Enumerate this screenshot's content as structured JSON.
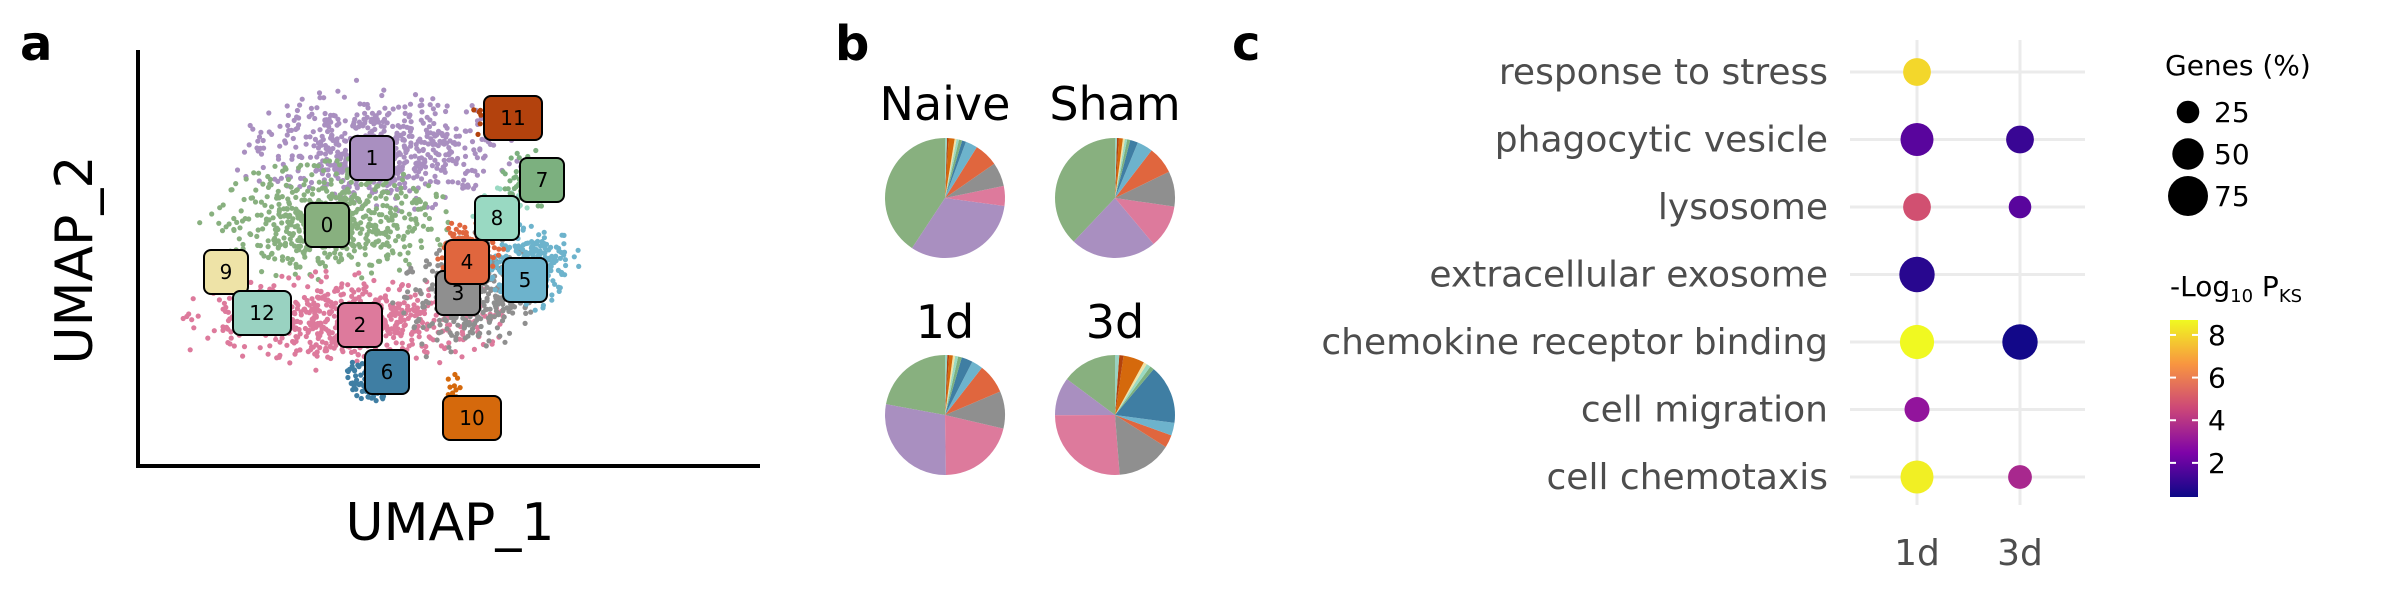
{
  "panels": {
    "a": "a",
    "b": "b",
    "c": "c"
  },
  "umap": {
    "xlabel": "UMAP_1",
    "ylabel": "UMAP_2",
    "clusters": [
      {
        "id": "0",
        "color": "#88b07f"
      },
      {
        "id": "1",
        "color": "#a98fc0"
      },
      {
        "id": "2",
        "color": "#dd7a9c"
      },
      {
        "id": "3",
        "color": "#8f8f8f"
      },
      {
        "id": "4",
        "color": "#e0663e"
      },
      {
        "id": "5",
        "color": "#6db3cc"
      },
      {
        "id": "6",
        "color": "#3f7ea3"
      },
      {
        "id": "7",
        "color": "#7cb07f"
      },
      {
        "id": "8",
        "color": "#99d9c2"
      },
      {
        "id": "9",
        "color": "#eee3a7"
      },
      {
        "id": "10",
        "color": "#d5690c"
      },
      {
        "id": "11",
        "color": "#b3420d"
      },
      {
        "id": "12",
        "color": "#99d2c1"
      }
    ]
  },
  "pies": {
    "titles": [
      "Naive",
      "Sham",
      "1d",
      "3d"
    ]
  },
  "chart_data": [
    {
      "type": "scatter",
      "description_source": "panel a",
      "xlabel": "UMAP_1",
      "ylabel": "UMAP_2",
      "cluster_labels": [
        "0",
        "1",
        "2",
        "3",
        "4",
        "5",
        "6",
        "7",
        "8",
        "9",
        "10",
        "11",
        "12"
      ]
    },
    {
      "type": "pie",
      "categories": [
        "0",
        "1",
        "2",
        "3",
        "4",
        "5",
        "6",
        "7",
        "8",
        "9",
        "10",
        "11",
        "12"
      ],
      "series": [
        {
          "name": "Naive",
          "values": [
            38,
            30,
            5,
            6,
            6,
            3,
            1,
            0.8,
            0.6,
            0.5,
            1.5,
            0.4,
            0.5
          ]
        },
        {
          "name": "Sham",
          "values": [
            36,
            22,
            11,
            9,
            7,
            4,
            2,
            0.8,
            0.6,
            0.5,
            1.0,
            0.5,
            0.5
          ]
        },
        {
          "name": "1d",
          "values": [
            22,
            28,
            21,
            10,
            8,
            3,
            3,
            1.0,
            0.8,
            0.6,
            1.0,
            0.5,
            0.6
          ]
        },
        {
          "name": "3d",
          "values": [
            13,
            9,
            23,
            13,
            3,
            3,
            14,
            1.0,
            1.0,
            0.8,
            5,
            1.0,
            1.0
          ]
        }
      ]
    },
    {
      "type": "scatter",
      "description_source": "panel c dot plot",
      "categories": [
        "response to stress",
        "phagocytic vesicle",
        "lysosome",
        "extracellular exosome",
        "chemokine receptor binding",
        "cell migration",
        "cell chemotaxis"
      ],
      "x": [
        "1d",
        "3d"
      ],
      "points": [
        {
          "term": "response to stress",
          "x": "1d",
          "genes_pct": 40,
          "neglog10p": 8.0
        },
        {
          "term": "phagocytic vesicle",
          "x": "1d",
          "genes_pct": 55,
          "neglog10p": 1.8
        },
        {
          "term": "phagocytic vesicle",
          "x": "3d",
          "genes_pct": 40,
          "neglog10p": 1.2
        },
        {
          "term": "lysosome",
          "x": "1d",
          "genes_pct": 40,
          "neglog10p": 4.8
        },
        {
          "term": "lysosome",
          "x": "3d",
          "genes_pct": 25,
          "neglog10p": 1.8
        },
        {
          "term": "extracellular exosome",
          "x": "1d",
          "genes_pct": 62,
          "neglog10p": 0.9
        },
        {
          "term": "chemokine receptor binding",
          "x": "1d",
          "genes_pct": 58,
          "neglog10p": 8.7
        },
        {
          "term": "chemokine receptor binding",
          "x": "3d",
          "genes_pct": 62,
          "neglog10p": 0.5
        },
        {
          "term": "cell migration",
          "x": "1d",
          "genes_pct": 32,
          "neglog10p": 3.0
        },
        {
          "term": "cell chemotaxis",
          "x": "1d",
          "genes_pct": 55,
          "neglog10p": 8.5
        },
        {
          "term": "cell chemotaxis",
          "x": "3d",
          "genes_pct": 28,
          "neglog10p": 3.6
        }
      ],
      "size_legend": {
        "title": "Genes (%)",
        "values": [
          25,
          50,
          75
        ]
      },
      "color_legend": {
        "title_prefix": "-Log",
        "title_sub": "10",
        "title_suffix": " P",
        "title_suffix_sub": "KS",
        "ticks": [
          2,
          4,
          6,
          8
        ],
        "range": [
          0.4,
          8.7
        ]
      }
    }
  ]
}
